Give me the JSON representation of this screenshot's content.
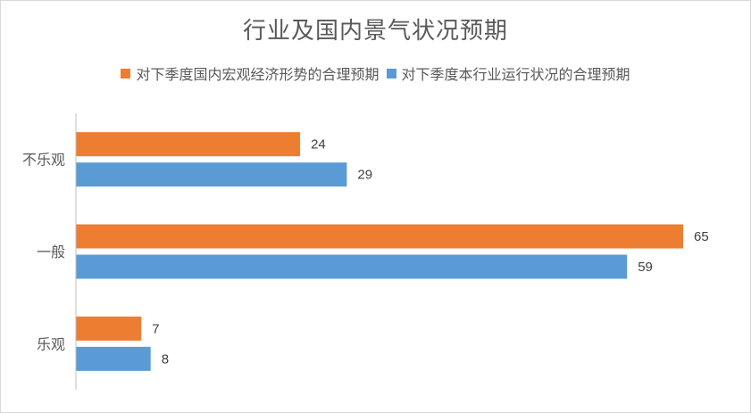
{
  "chart_data": {
    "type": "bar",
    "orientation": "horizontal",
    "title": "行业及国内景气状况预期",
    "categories": [
      "不乐观",
      "一般",
      "乐观"
    ],
    "series": [
      {
        "name": "对下季度国内宏观经济形势的合理预期",
        "color": "#ED7D31",
        "values": [
          24,
          65,
          7
        ]
      },
      {
        "name": "对下季度本行业运行状况的合理预期",
        "color": "#5B9BD5",
        "values": [
          29,
          59,
          8
        ]
      }
    ],
    "xlim": [
      0,
      65
    ],
    "grid": false,
    "legend_position": "top"
  }
}
